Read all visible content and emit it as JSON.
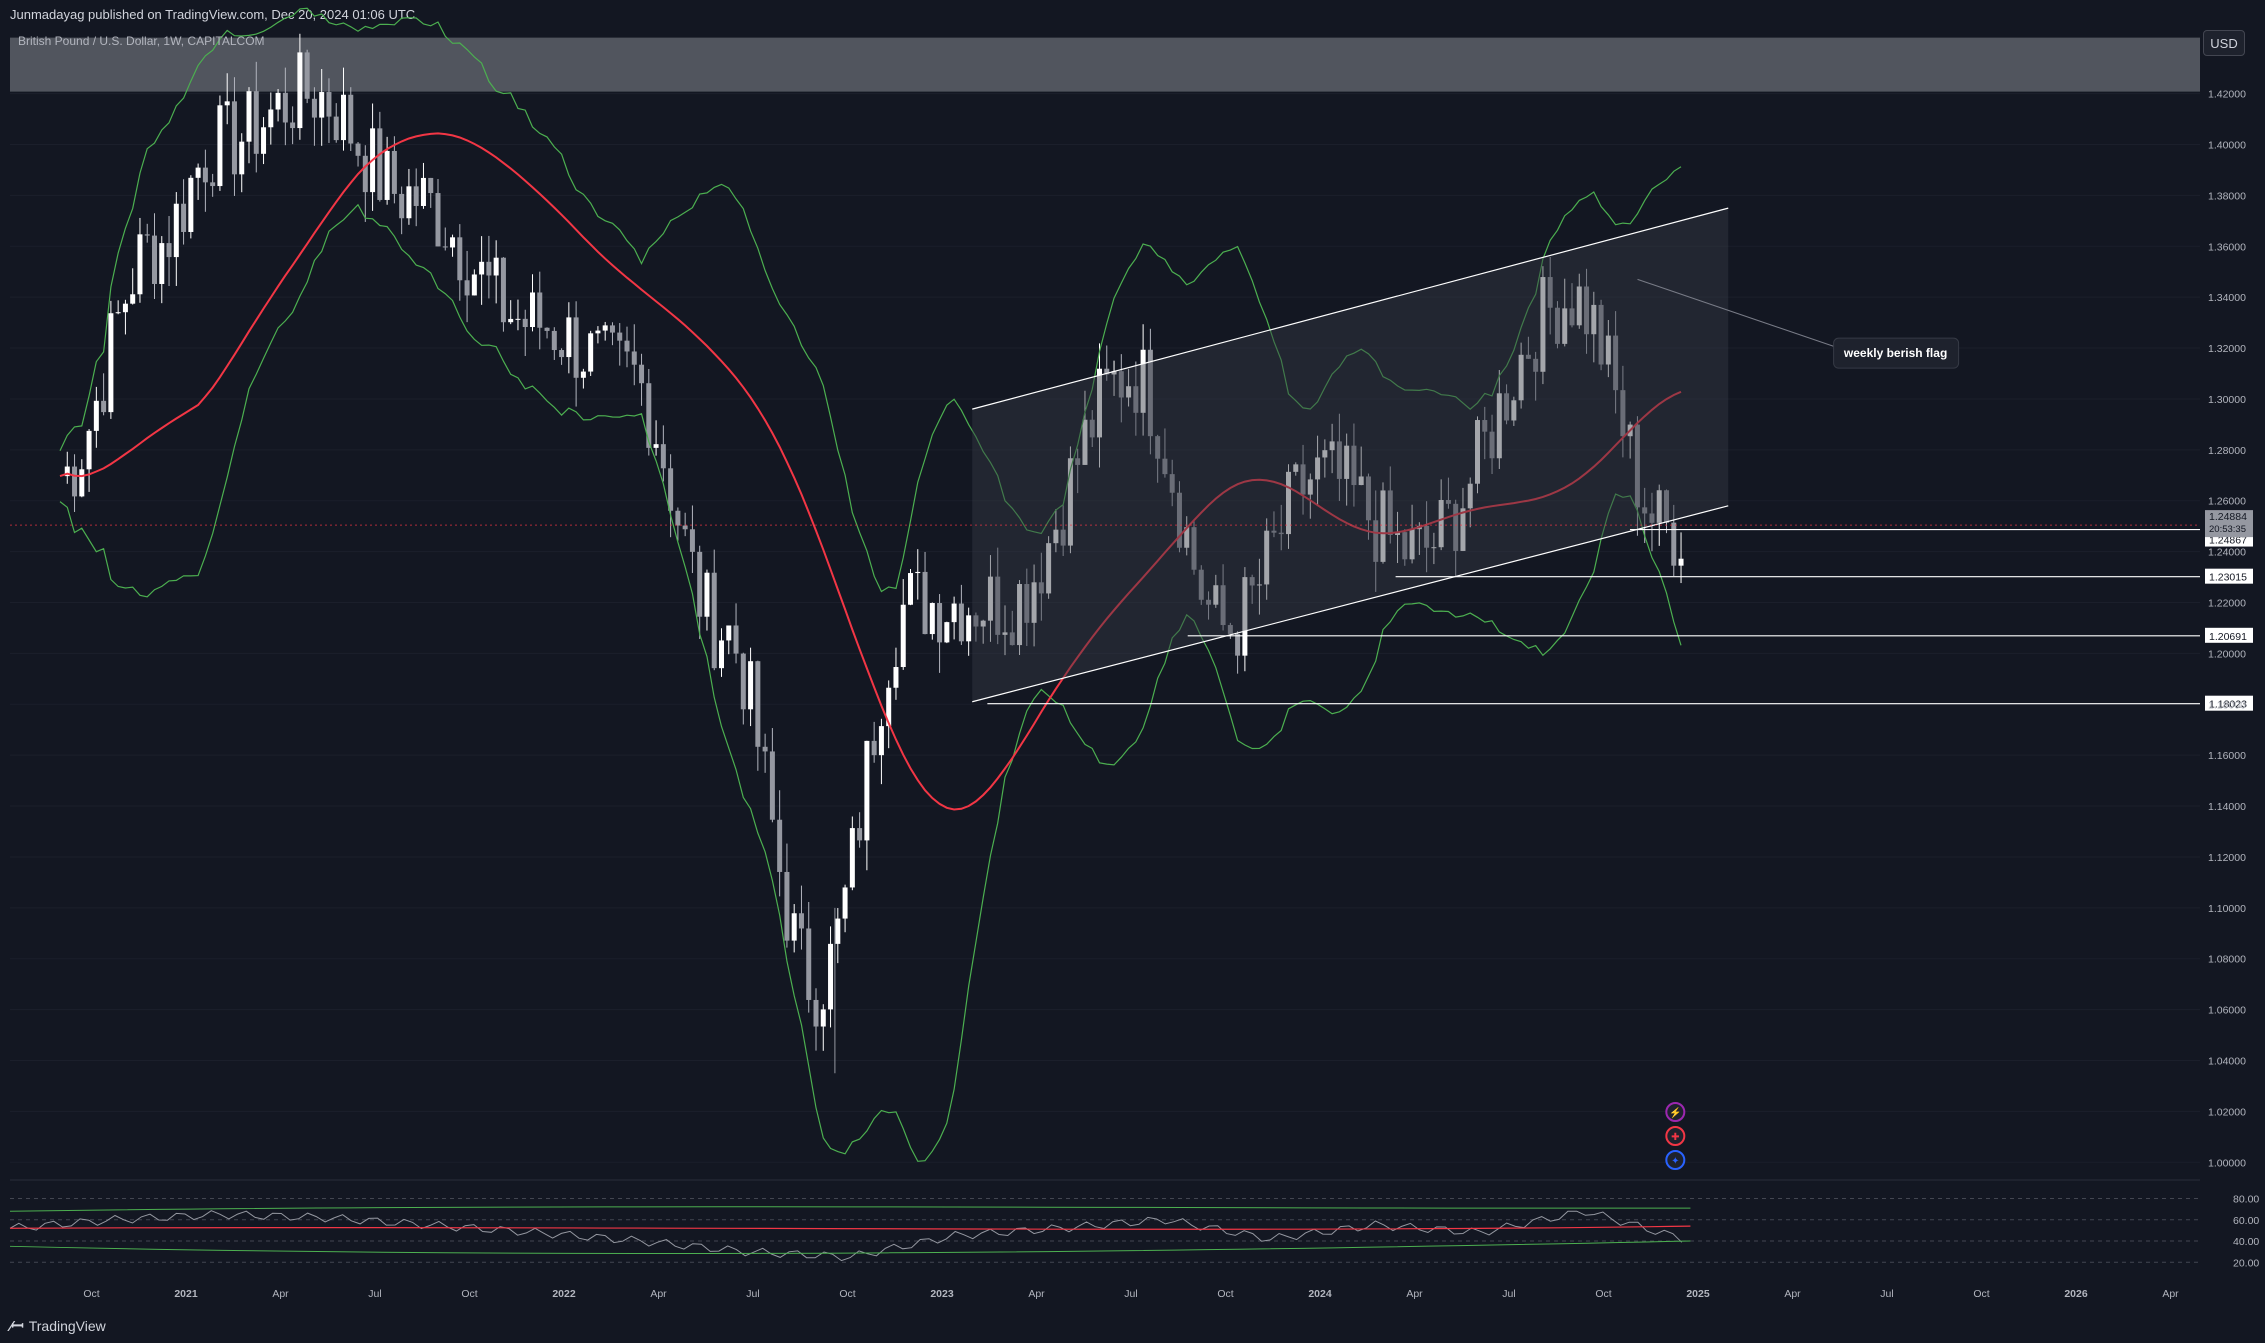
{
  "header": {
    "published_line": "Junmadayag published on TradingView.com, Dec 20, 2024 01:06 UTC"
  },
  "symbol_label": "British Pound / U.S. Dollar, 1W, CAPITALCOM",
  "currency_button": "USD",
  "footer": {
    "logo_text": "TradingView"
  },
  "colors": {
    "background": "#131722",
    "bb_band": "#4caf50",
    "ma": "#f23645",
    "candle": "#ffffff",
    "grid": "#1f2433"
  },
  "icons": [
    "lightning-icon",
    "uk-flag-icon",
    "us-flag-icon"
  ],
  "chart_data": {
    "type": "candlestick",
    "title": "",
    "price_axis": {
      "min": 1.0,
      "max": 1.44,
      "ticks": [
        "1.42000",
        "1.40000",
        "1.38000",
        "1.36000",
        "1.34000",
        "1.32000",
        "1.30000",
        "1.28000",
        "1.26000",
        "1.24000",
        "1.22000",
        "1.20000",
        "1.18000",
        "1.16000",
        "1.14000",
        "1.12000",
        "1.10000",
        "1.08000",
        "1.06000",
        "1.04000",
        "1.02000",
        "1.00000"
      ]
    },
    "time_axis": {
      "labels": [
        "Oct",
        "2021",
        "Apr",
        "Jul",
        "Oct",
        "2022",
        "Apr",
        "Jul",
        "Oct",
        "2023",
        "Apr",
        "Jul",
        "Oct",
        "2024",
        "Apr",
        "Jul",
        "Oct",
        "2025",
        "Apr",
        "Jul",
        "Oct",
        "2026",
        "Apr"
      ]
    },
    "last_price": {
      "value": "1.24884",
      "countdown": "20:53:35"
    },
    "horizontal_levels": [
      "1.24867",
      "1.23015",
      "1.20691",
      "1.18023"
    ],
    "annotation": "weekly berish flag",
    "series": [
      {
        "name": "GBPUSD",
        "key_closes": [
          {
            "date": "2020-09",
            "close": 1.27
          },
          {
            "date": "2020-12",
            "close": 1.36
          },
          {
            "date": "2021-02",
            "close": 1.4
          },
          {
            "date": "2021-05",
            "close": 1.42
          },
          {
            "date": "2021-08",
            "close": 1.38
          },
          {
            "date": "2021-12",
            "close": 1.33
          },
          {
            "date": "2022-03",
            "close": 1.31
          },
          {
            "date": "2022-06",
            "close": 1.21
          },
          {
            "date": "2022-09",
            "close": 1.07
          },
          {
            "date": "2022-12",
            "close": 1.22
          },
          {
            "date": "2023-03",
            "close": 1.22
          },
          {
            "date": "2023-07",
            "close": 1.31
          },
          {
            "date": "2023-10",
            "close": 1.21
          },
          {
            "date": "2024-01",
            "close": 1.27
          },
          {
            "date": "2024-04",
            "close": 1.24
          },
          {
            "date": "2024-09",
            "close": 1.34
          },
          {
            "date": "2024-12",
            "close": 1.249
          }
        ]
      }
    ],
    "rsi_panel": {
      "ticks": [
        "80.00",
        "60.00",
        "40.00",
        "20.00"
      ],
      "series": [
        {
          "name": "RSI",
          "values": [
            52,
            60,
            65,
            62,
            55,
            48,
            40,
            30,
            25,
            45,
            52,
            60,
            42,
            55,
            48,
            68,
            40
          ]
        }
      ]
    }
  }
}
